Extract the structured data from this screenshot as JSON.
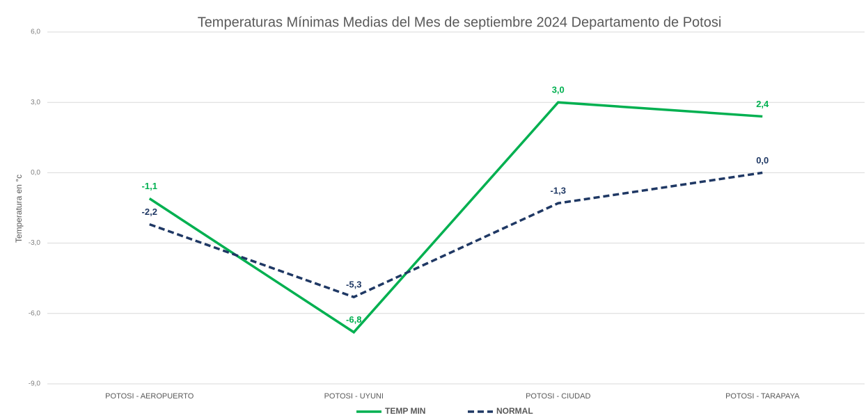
{
  "chart_data": {
    "type": "line",
    "title": "Temperaturas Mínimas Medias del Mes de septiembre 2024 Departamento de Potosi",
    "y_label": "Temperatura en °c",
    "categories": [
      "POTOSI - AEROPUERTO",
      "POTOSI - UYUNI",
      "POTOSI - CIUDAD",
      "POTOSI - TARAPAYA"
    ],
    "series": [
      {
        "name": "TEMP MIN",
        "color": "#00b050",
        "dash": false,
        "values": [
          -1.1,
          -6.8,
          3.0,
          2.4
        ],
        "value_labels": [
          "-1,1",
          "-6,8",
          "3,0",
          "2,4"
        ]
      },
      {
        "name": "NORMAL",
        "color": "#1f3864",
        "dash": true,
        "values": [
          -2.2,
          -5.3,
          -1.3,
          0.0
        ],
        "value_labels": [
          "-2,2",
          "-5,3",
          "-1,3",
          "0,0"
        ]
      }
    ],
    "ylim": [
      -9,
      6
    ],
    "yticks": [
      {
        "value": -9,
        "label": "-9,0"
      },
      {
        "value": -6,
        "label": "-6,0"
      },
      {
        "value": -3,
        "label": "-3,0"
      },
      {
        "value": 0,
        "label": "0,0"
      },
      {
        "value": 3,
        "label": "3,0"
      },
      {
        "value": 6,
        "label": "6,0"
      }
    ],
    "grid": true,
    "legend": "bottom"
  }
}
